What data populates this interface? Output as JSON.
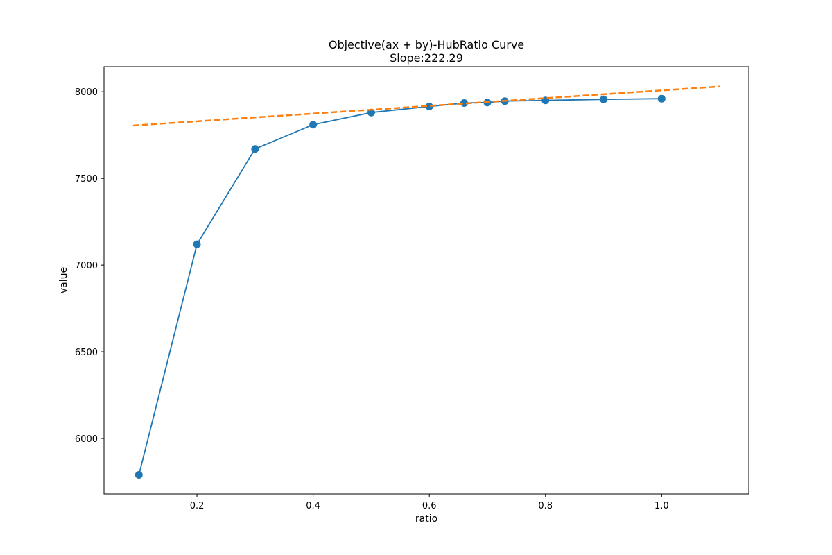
{
  "chart_data": {
    "type": "line",
    "title": "Objective(ax + by)-HubRatio Curve",
    "subtitle": "Slope:222.29",
    "xlabel": "ratio",
    "ylabel": "value",
    "xlim": [
      0.04,
      1.15
    ],
    "ylim": [
      5680,
      8145
    ],
    "xticks": [
      {
        "value": 0.2,
        "label": "0.2"
      },
      {
        "value": 0.4,
        "label": "0.4"
      },
      {
        "value": 0.6,
        "label": "0.6"
      },
      {
        "value": 0.8,
        "label": "0.8"
      },
      {
        "value": 1.0,
        "label": "1.0"
      }
    ],
    "yticks": [
      {
        "value": 6000,
        "label": "6000"
      },
      {
        "value": 6500,
        "label": "6500"
      },
      {
        "value": 7000,
        "label": "7000"
      },
      {
        "value": 7500,
        "label": "7500"
      },
      {
        "value": 8000,
        "label": "8000"
      }
    ],
    "grid": false,
    "series": [
      {
        "style": "solid-with-markers",
        "color": "#1f77b4",
        "x": [
          0.1,
          0.2,
          0.3,
          0.4,
          0.5,
          0.6,
          0.66,
          0.7,
          0.73,
          0.8,
          0.9,
          1.0
        ],
        "y": [
          5790,
          7120,
          7670,
          7810,
          7880,
          7915,
          7935,
          7938,
          7946,
          7950,
          7956,
          7960
        ]
      },
      {
        "style": "dashed",
        "color": "#ff7f0e",
        "x": [
          0.09,
          1.1
        ],
        "y": [
          7805,
          8030
        ]
      }
    ]
  }
}
